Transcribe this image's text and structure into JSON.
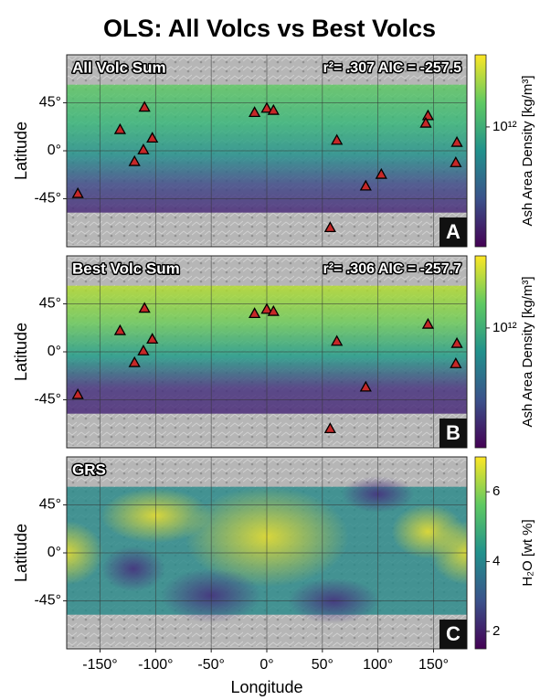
{
  "title": "OLS: All Volcs vs Best Volcs",
  "chart_data": [
    {
      "type": "scatter",
      "title": "All Volc Sum",
      "annotation": "r²= .307 AIC = -257.5",
      "panel_label": "A",
      "ylabel": "Latitude",
      "xlim": [
        -180,
        180
      ],
      "ylim": [
        -90,
        90
      ],
      "yticks": [
        {
          "value": 45,
          "label": "45°"
        },
        {
          "value": 0,
          "label": "0°"
        },
        {
          "value": -45,
          "label": "-45°"
        }
      ],
      "x": [
        -110,
        -132,
        -103,
        -111,
        -119,
        -170,
        -11,
        0,
        6,
        63,
        89,
        103,
        145,
        143,
        171,
        170,
        57
      ],
      "y": [
        41,
        20,
        12,
        1,
        -10,
        -40,
        36,
        40,
        38,
        10,
        -33,
        -22,
        33,
        26,
        8,
        -11,
        -72
      ],
      "color": "#c62828",
      "grid": true,
      "colorbar": {
        "label": "Ash Area Density [kg/m³]",
        "lim": [
          100000000000,
          4000000000000
        ],
        "log": true,
        "colormap": "viridis",
        "ticks": [
          {
            "value": 1000000000000,
            "label": "10¹²"
          }
        ]
      }
    },
    {
      "type": "scatter",
      "title": "Best Volc Sum",
      "annotation": "r²= .306 AIC = -257.7",
      "panel_label": "B",
      "ylabel": "Latitude",
      "xlim": [
        -180,
        180
      ],
      "ylim": [
        -90,
        90
      ],
      "yticks": [
        {
          "value": 45,
          "label": "45°"
        },
        {
          "value": 0,
          "label": "0°"
        },
        {
          "value": -45,
          "label": "-45°"
        }
      ],
      "x": [
        -110,
        -132,
        -103,
        -111,
        -119,
        -170,
        -11,
        0,
        6,
        63,
        89,
        145,
        171,
        170,
        57
      ],
      "y": [
        41,
        20,
        12,
        1,
        -10,
        -40,
        36,
        40,
        38,
        10,
        -33,
        26,
        8,
        -11,
        -72
      ],
      "color": "#c62828",
      "grid": true,
      "colorbar": {
        "label": "Ash Area Density [kg/m³]",
        "lim": [
          100000000000,
          4000000000000
        ],
        "log": true,
        "colormap": "viridis",
        "ticks": [
          {
            "value": 1000000000000,
            "label": "10¹²"
          }
        ]
      }
    },
    {
      "type": "heatmap",
      "title": "GRS",
      "panel_label": "C",
      "ylabel": "Latitude",
      "xlabel": "Longitude",
      "xlim": [
        -180,
        180
      ],
      "ylim": [
        -90,
        90
      ],
      "yticks": [
        {
          "value": 45,
          "label": "45°"
        },
        {
          "value": 0,
          "label": "0°"
        },
        {
          "value": -45,
          "label": "-45°"
        }
      ],
      "xticks": [
        {
          "value": -150,
          "label": "-150°"
        },
        {
          "value": -100,
          "label": "-100°"
        },
        {
          "value": -50,
          "label": "-50°"
        },
        {
          "value": 0,
          "label": "0°"
        },
        {
          "value": 50,
          "label": "50°"
        },
        {
          "value": 100,
          "label": "100°"
        },
        {
          "value": 150,
          "label": "150°"
        }
      ],
      "grid": true,
      "colorbar": {
        "label": "H₂O [wt %]",
        "lim": [
          1.5,
          7
        ],
        "log": false,
        "colormap": "viridis",
        "ticks": [
          2,
          4,
          6
        ]
      }
    }
  ]
}
